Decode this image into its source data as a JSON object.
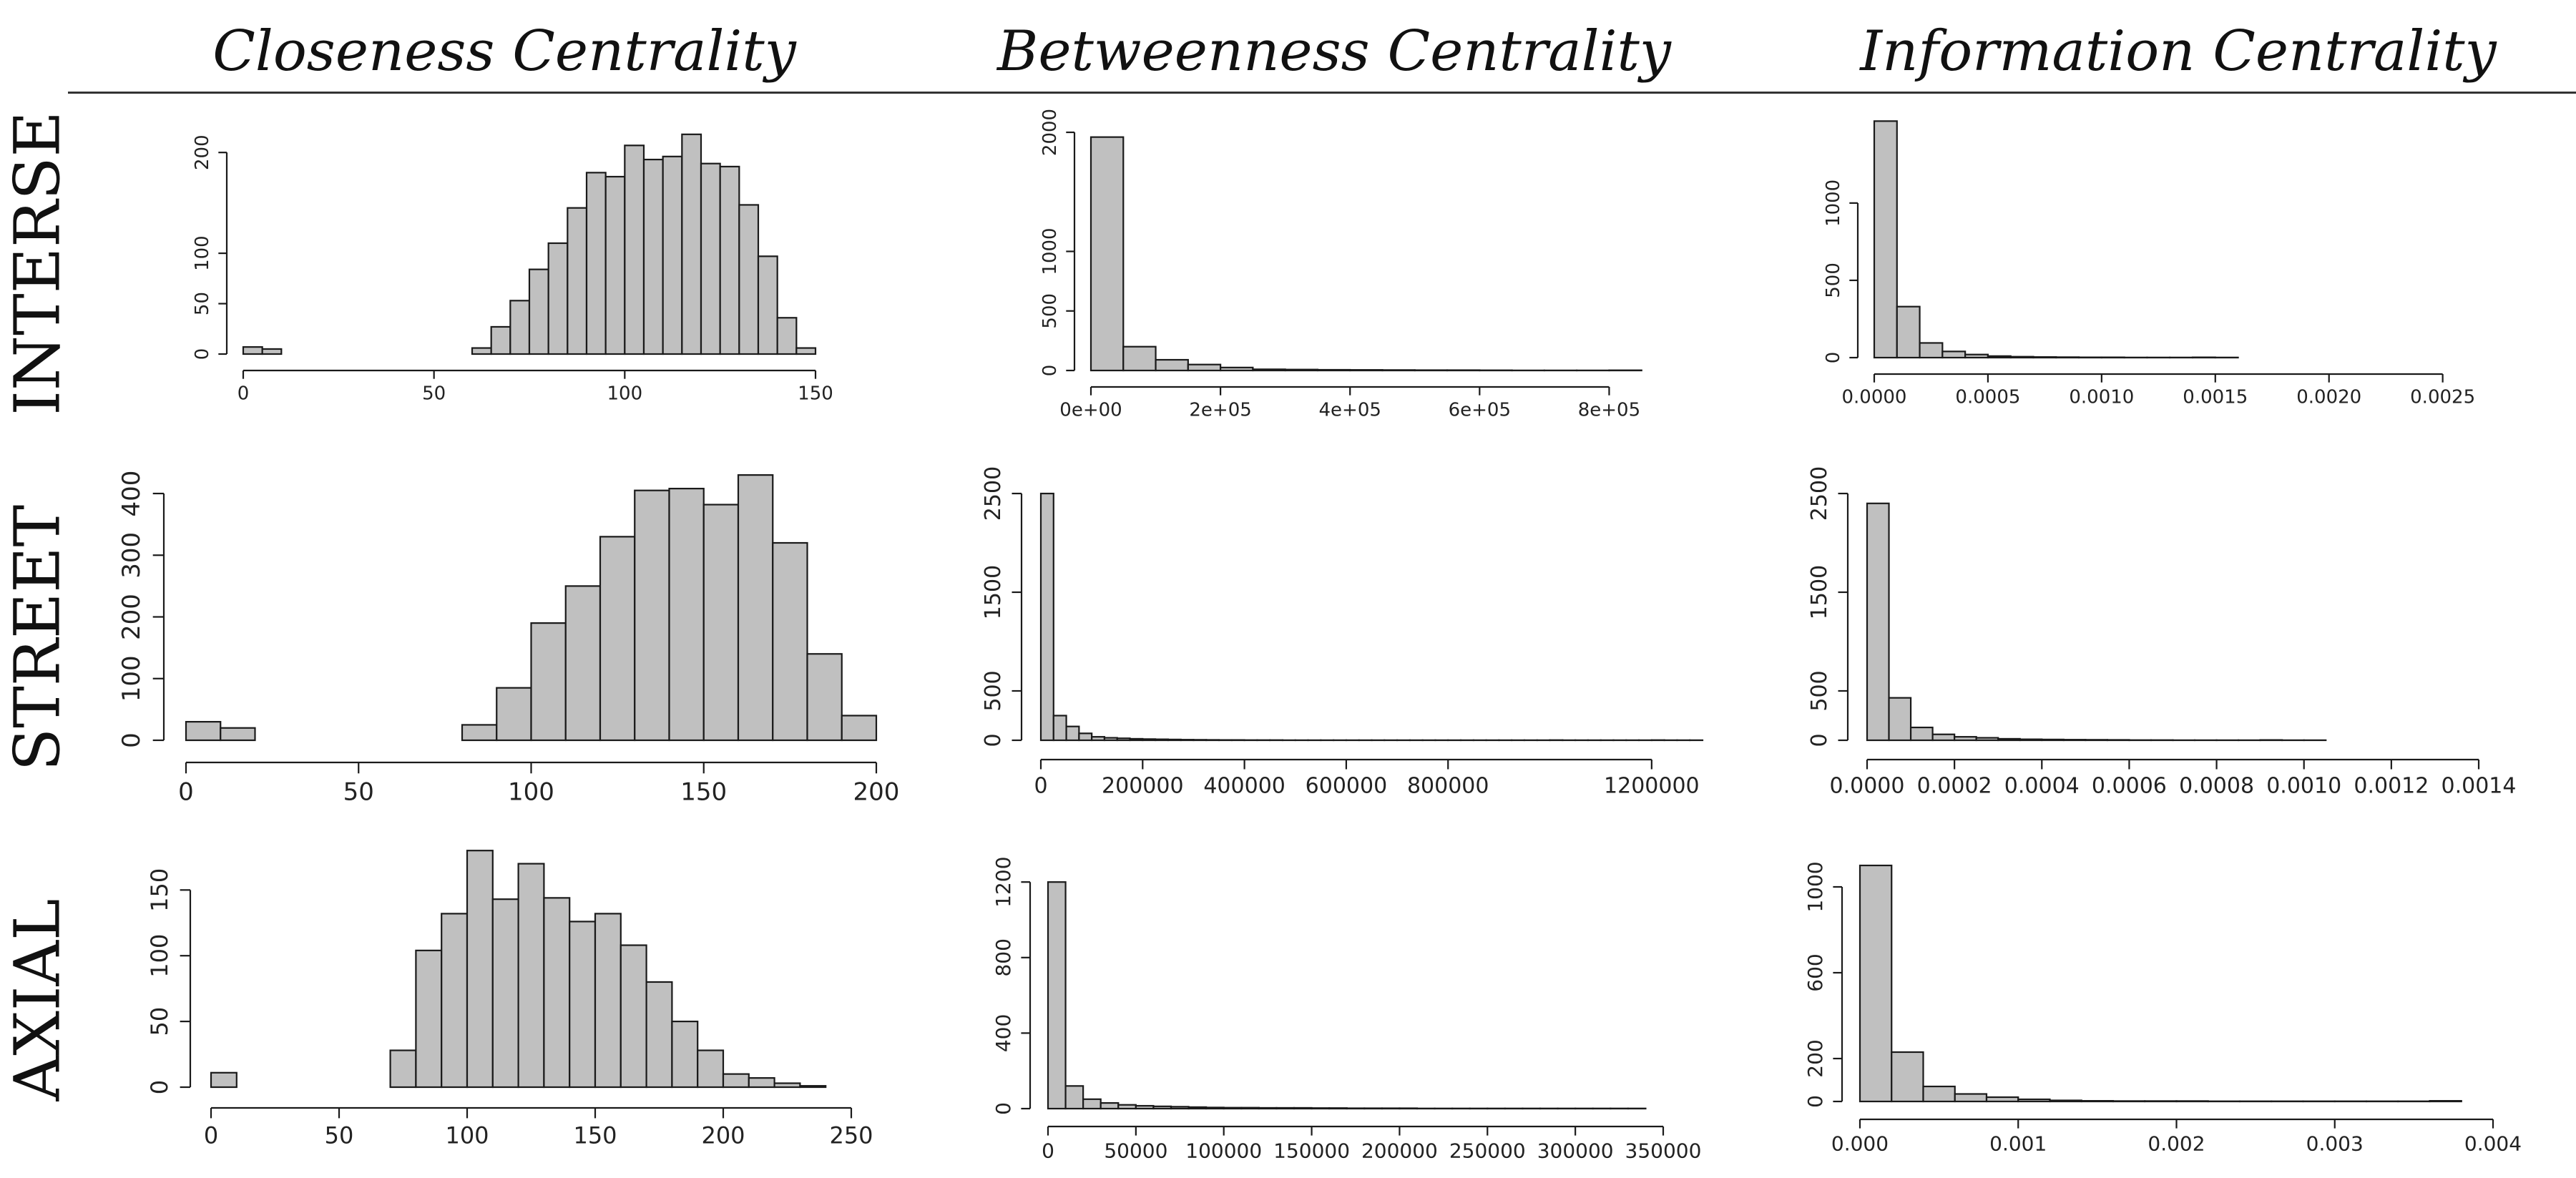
{
  "headers": {
    "closeness": "Closeness Centrality",
    "betweenness": "Betweenness Centrality",
    "information": "Information Centrality"
  },
  "rows": {
    "interse": "INTERSE",
    "street": "STREET",
    "axial": "AXIAL"
  },
  "chart_data": [
    {
      "id": "interse-closeness",
      "type": "bar",
      "xlim": [
        0,
        150
      ],
      "ylim": [
        0,
        220
      ],
      "xticks": [
        0,
        50,
        100,
        150
      ],
      "xtick_labels": [
        "0",
        "50",
        "100",
        "150"
      ],
      "yticks": [
        0,
        50,
        100,
        200
      ],
      "ytick_labels": [
        "0",
        "50",
        "100",
        "200"
      ],
      "bin_start": 0,
      "bin_width": 5,
      "values": [
        7,
        5,
        0,
        0,
        0,
        0,
        0,
        0,
        0,
        0,
        0,
        0,
        6,
        27,
        53,
        84,
        110,
        145,
        180,
        176,
        207,
        193,
        196,
        218,
        189,
        186,
        148,
        97,
        36,
        6
      ]
    },
    {
      "id": "interse-betweenness",
      "type": "bar",
      "xlim": [
        0,
        900000
      ],
      "ylim": [
        0,
        2000
      ],
      "xticks": [
        0,
        200000,
        400000,
        600000,
        800000
      ],
      "xtick_labels": [
        "0e+00",
        "2e+05",
        "4e+05",
        "6e+05",
        "8e+05"
      ],
      "yticks": [
        0,
        500,
        1000,
        2000
      ],
      "ytick_labels": [
        "0",
        "500",
        "1000",
        "2000"
      ],
      "bin_start": 0,
      "bin_width": 50000,
      "values": [
        1960,
        200,
        90,
        50,
        25,
        10,
        8,
        6,
        5,
        4,
        3,
        3,
        2,
        1,
        1,
        1,
        2,
        0
      ]
    },
    {
      "id": "interse-information",
      "type": "bar",
      "xlim": [
        0,
        0.0028
      ],
      "ylim": [
        0,
        1550
      ],
      "xticks": [
        0,
        0.0005,
        0.001,
        0.0015,
        0.002,
        0.0025
      ],
      "xtick_labels": [
        "0.0000",
        "0.0005",
        "0.0010",
        "0.0015",
        "0.0020",
        "0.0025"
      ],
      "yticks": [
        0,
        500,
        1000
      ],
      "ytick_labels": [
        "0",
        "500",
        "1000"
      ],
      "bin_start": 0,
      "bin_width": 0.0001,
      "values": [
        1530,
        330,
        95,
        40,
        20,
        10,
        6,
        4,
        3,
        2,
        2,
        1,
        1,
        1,
        2,
        1,
        0,
        0,
        0,
        0,
        0,
        0,
        0,
        0,
        0,
        0,
        0,
        0
      ]
    },
    {
      "id": "street-closeness",
      "type": "bar",
      "xlim": [
        0,
        200
      ],
      "ylim": [
        0,
        400
      ],
      "xticks": [
        0,
        50,
        100,
        150,
        200
      ],
      "xtick_labels": [
        "0",
        "50",
        "100",
        "150",
        "200"
      ],
      "yticks": [
        0,
        100,
        200,
        300,
        400
      ],
      "ytick_labels": [
        "0",
        "100",
        "200",
        "300",
        "400"
      ],
      "bin_start": 0,
      "bin_width": 10,
      "values": [
        30,
        20,
        0,
        0,
        0,
        0,
        0,
        0,
        25,
        85,
        190,
        250,
        330,
        405,
        408,
        382,
        430,
        320,
        140,
        40
      ]
    },
    {
      "id": "street-betweenness",
      "type": "bar",
      "xlim": [
        0,
        1300000
      ],
      "ylim": [
        0,
        2500
      ],
      "xticks": [
        0,
        200000,
        400000,
        600000,
        800000,
        1200000
      ],
      "xtick_labels": [
        "0",
        "200000",
        "400000",
        "600000",
        "800000",
        "1200000"
      ],
      "yticks": [
        0,
        500,
        1500,
        2500
      ],
      "ytick_labels": [
        "0",
        "500",
        "1500",
        "2500"
      ],
      "bin_start": 0,
      "bin_width": 25000,
      "values": [
        2500,
        250,
        140,
        70,
        35,
        25,
        20,
        15,
        12,
        10,
        8,
        6,
        5,
        4,
        3,
        3,
        2,
        2,
        2,
        1,
        1,
        1,
        1,
        1,
        1,
        1,
        1,
        1,
        1,
        1,
        1,
        1,
        1,
        1,
        1,
        1,
        1,
        1,
        1,
        1,
        2,
        1,
        1,
        1,
        1,
        1,
        1,
        1,
        2,
        1,
        1,
        1
      ]
    },
    {
      "id": "street-information",
      "type": "bar",
      "xlim": [
        0,
        0.0014
      ],
      "ylim": [
        0,
        2500
      ],
      "xticks": [
        0,
        0.0002,
        0.0004,
        0.0006,
        0.0008,
        0.001,
        0.0012,
        0.0014
      ],
      "xtick_labels": [
        "0.0000",
        "0.0002",
        "0.0004",
        "0.0006",
        "0.0008",
        "0.0010",
        "0.0012",
        "0.0014"
      ],
      "yticks": [
        0,
        500,
        1500,
        2500
      ],
      "ytick_labels": [
        "0",
        "500",
        "1500",
        "2500"
      ],
      "bin_start": 0,
      "bin_width": 5e-05,
      "values": [
        2400,
        430,
        130,
        60,
        35,
        25,
        15,
        10,
        8,
        6,
        5,
        4,
        2,
        2,
        1,
        1,
        1,
        1,
        3,
        1,
        1,
        0,
        0,
        0,
        0,
        0,
        0,
        0
      ]
    },
    {
      "id": "axial-closeness",
      "type": "bar",
      "xlim": [
        0,
        250
      ],
      "ylim": [
        0,
        185
      ],
      "xticks": [
        0,
        50,
        100,
        150,
        200,
        250
      ],
      "xtick_labels": [
        "0",
        "50",
        "100",
        "150",
        "200",
        "250"
      ],
      "yticks": [
        0,
        50,
        100,
        150
      ],
      "ytick_labels": [
        "0",
        "50",
        "100",
        "150"
      ],
      "bin_start": 0,
      "bin_width": 10,
      "values": [
        11,
        0,
        0,
        0,
        0,
        0,
        0,
        28,
        104,
        132,
        180,
        143,
        170,
        144,
        126,
        132,
        108,
        80,
        50,
        28,
        10,
        7,
        3,
        1
      ]
    },
    {
      "id": "axial-betweenness",
      "type": "bar",
      "xlim": [
        0,
        350000
      ],
      "ylim": [
        0,
        1250
      ],
      "xticks": [
        0,
        50000,
        100000,
        150000,
        200000,
        250000,
        300000,
        350000
      ],
      "xtick_labels": [
        "0",
        "50000",
        "100000",
        "150000",
        "200000",
        "250000",
        "300000",
        "350000"
      ],
      "yticks": [
        0,
        400,
        800,
        1200
      ],
      "ytick_labels": [
        "0",
        "400",
        "800",
        "1200"
      ],
      "bin_start": 0,
      "bin_width": 10000,
      "values": [
        1200,
        120,
        50,
        30,
        20,
        15,
        12,
        10,
        8,
        6,
        5,
        5,
        4,
        4,
        4,
        3,
        3,
        2,
        2,
        2,
        2,
        1,
        1,
        1,
        1,
        1,
        1,
        1,
        1,
        1,
        1,
        1,
        1,
        1
      ]
    },
    {
      "id": "axial-information",
      "type": "bar",
      "xlim": [
        0,
        0.004
      ],
      "ylim": [
        0,
        1100
      ],
      "xticks": [
        0,
        0.001,
        0.002,
        0.003,
        0.004
      ],
      "xtick_labels": [
        "0.000",
        "0.001",
        "0.002",
        "0.003",
        "0.004"
      ],
      "yticks": [
        0,
        200,
        600,
        1000
      ],
      "ytick_labels": [
        "0",
        "200",
        "600",
        "1000"
      ],
      "bin_start": 0,
      "bin_width": 0.0002,
      "values": [
        1100,
        230,
        70,
        35,
        20,
        10,
        5,
        3,
        2,
        2,
        2,
        1,
        1,
        1,
        1,
        1,
        1,
        1,
        3
      ]
    }
  ]
}
